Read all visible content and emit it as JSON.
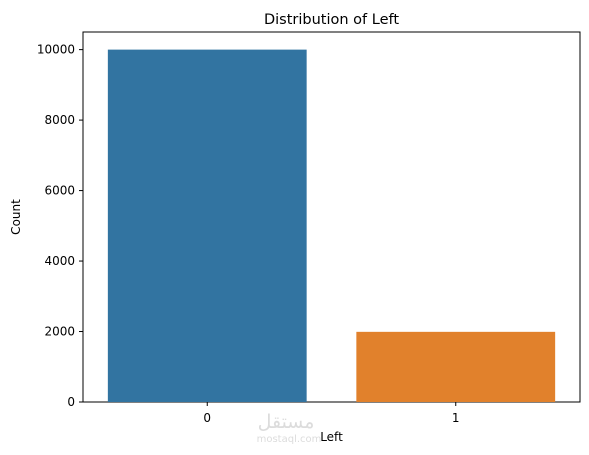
{
  "chart_data": {
    "type": "bar",
    "title": "Distribution of Left",
    "xlabel": "Left",
    "ylabel": "Count",
    "categories": [
      "0",
      "1"
    ],
    "values": [
      10000,
      1991
    ],
    "colors": [
      "#3274a1",
      "#e1812c"
    ],
    "ylim": [
      0,
      10500
    ],
    "yticks": [
      0,
      2000,
      4000,
      6000,
      8000,
      10000
    ],
    "grid": false,
    "legend": "none"
  },
  "watermark": {
    "arabic": "مستقل",
    "latin": "mostaql.com"
  }
}
